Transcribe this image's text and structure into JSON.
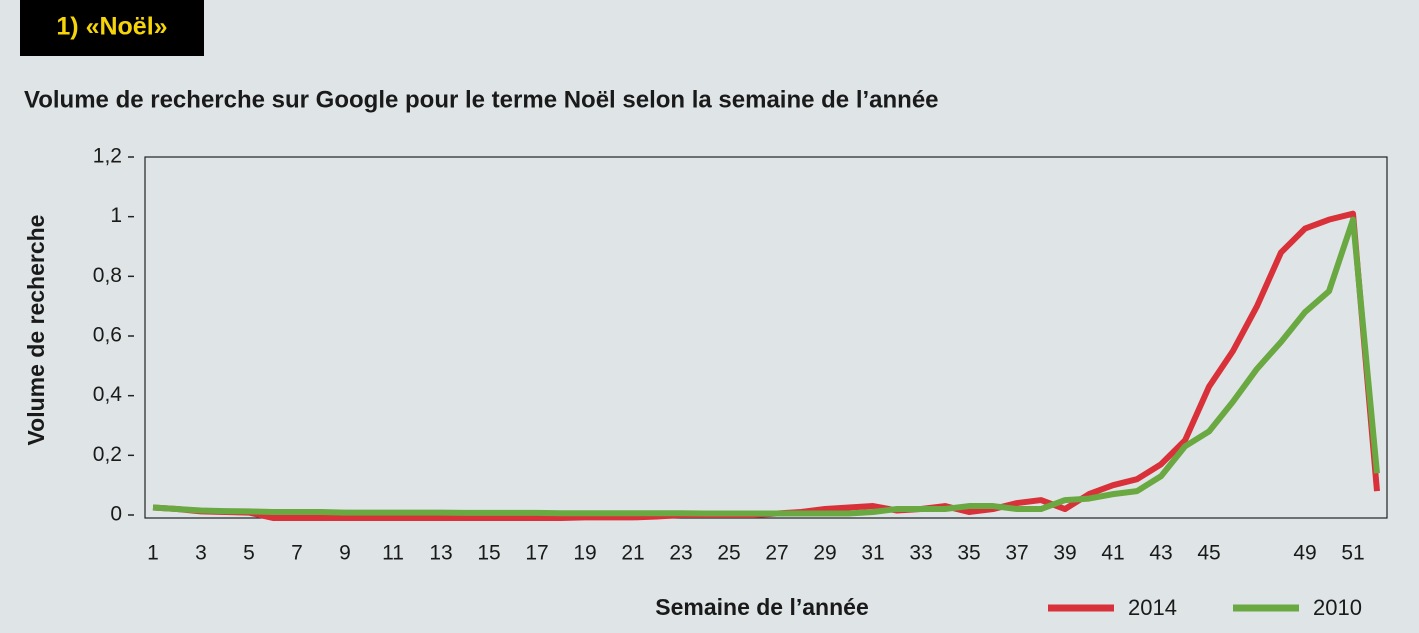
{
  "chart_data": {
    "type": "line",
    "section_label": "1) «Noël»",
    "title": "Volume de recherche sur Google pour le terme Noël selon la semaine de l’année",
    "xlabel": "Semaine de l’année",
    "ylabel": "Volume de recherche",
    "categories": [
      "1",
      null,
      "3",
      null,
      "5",
      null,
      "7",
      null,
      "9",
      null,
      "11",
      null,
      "13",
      null,
      "15",
      null,
      "17",
      null,
      "19",
      null,
      "21",
      null,
      "23",
      null,
      "25",
      null,
      "27",
      null,
      "29",
      null,
      "31",
      null,
      "33",
      null,
      "35",
      null,
      "37",
      null,
      "39",
      null,
      "41",
      null,
      "43",
      null,
      "45",
      null,
      null,
      null,
      "49",
      null,
      "51",
      null
    ],
    "series": [
      {
        "name": "2014",
        "color": "#d9313a",
        "values": [
          0.025,
          0.02,
          0.012,
          0.01,
          0.008,
          -0.01,
          -0.01,
          -0.01,
          -0.01,
          -0.01,
          -0.01,
          -0.01,
          -0.01,
          -0.01,
          -0.01,
          -0.01,
          -0.01,
          -0.01,
          -0.008,
          -0.008,
          -0.008,
          -0.005,
          0,
          0,
          0,
          0,
          0.005,
          0.01,
          0.02,
          0.025,
          0.03,
          0.015,
          0.02,
          0.03,
          0.01,
          0.02,
          0.04,
          0.05,
          0.02,
          0.07,
          0.1,
          0.12,
          0.17,
          0.25,
          0.43,
          0.55,
          0.7,
          0.88,
          0.96,
          0.99,
          1.01,
          0.08
        ]
      },
      {
        "name": "2010",
        "color": "#6aa842",
        "values": [
          0.025,
          0.02,
          0.015,
          0.013,
          0.012,
          0.01,
          0.01,
          0.01,
          0.008,
          0.008,
          0.008,
          0.008,
          0.008,
          0.007,
          0.007,
          0.007,
          0.007,
          0.006,
          0.006,
          0.006,
          0.006,
          0.006,
          0.006,
          0.005,
          0.005,
          0.005,
          0.005,
          0.005,
          0.005,
          0.005,
          0.01,
          0.02,
          0.02,
          0.02,
          0.03,
          0.03,
          0.02,
          0.02,
          0.05,
          0.055,
          0.07,
          0.08,
          0.13,
          0.23,
          0.28,
          0.38,
          0.49,
          0.58,
          0.68,
          0.75,
          0.99,
          0.14
        ]
      }
    ],
    "ylim": [
      0,
      1.2
    ],
    "yticks": [
      0,
      {
        "value": 0.2,
        "label": "0,2"
      },
      {
        "value": 0.4,
        "label": "0,4"
      },
      {
        "value": 0.6,
        "label": "0,6"
      },
      {
        "value": 0.8,
        "label": "0,8"
      },
      1,
      {
        "value": 1.2,
        "label": "1,2"
      }
    ]
  }
}
